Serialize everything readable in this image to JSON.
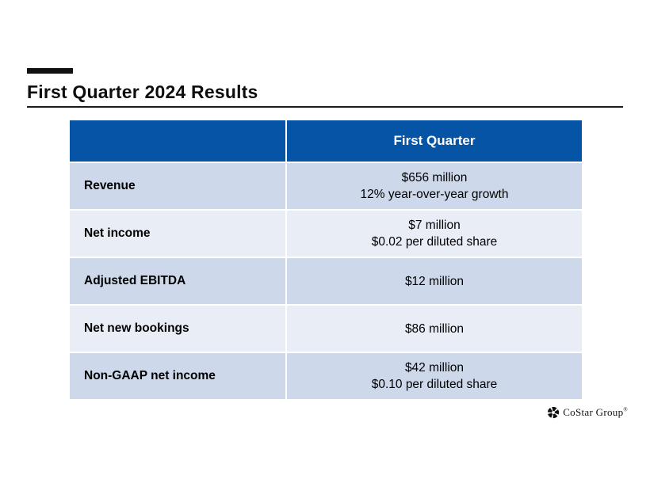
{
  "title": "First Quarter 2024 Results",
  "colors": {
    "header_bg": "#0554A5",
    "header_text": "#FFFFFF",
    "row_dark": "#CDD9EB",
    "row_light": "#E9EDF6",
    "accent_bar": "#111111",
    "body_text": "#000000"
  },
  "table": {
    "header": {
      "col1": "",
      "col2": "First Quarter"
    },
    "rows": [
      {
        "label": "Revenue",
        "values": [
          "$656 million",
          "12% year-over-year growth"
        ],
        "shade": "dark"
      },
      {
        "label": "Net income",
        "values": [
          "$7 million",
          "$0.02 per diluted share"
        ],
        "shade": "light"
      },
      {
        "label": "Adjusted EBITDA",
        "values": [
          "$12 million"
        ],
        "shade": "dark"
      },
      {
        "label": "Net new bookings",
        "values": [
          "$86 million"
        ],
        "shade": "light"
      },
      {
        "label": "Non-GAAP net income",
        "values": [
          "$42 million",
          "$0.10 per diluted share"
        ],
        "shade": "dark"
      }
    ]
  },
  "logo": {
    "name": "CoStar Group",
    "trademark": "®"
  }
}
